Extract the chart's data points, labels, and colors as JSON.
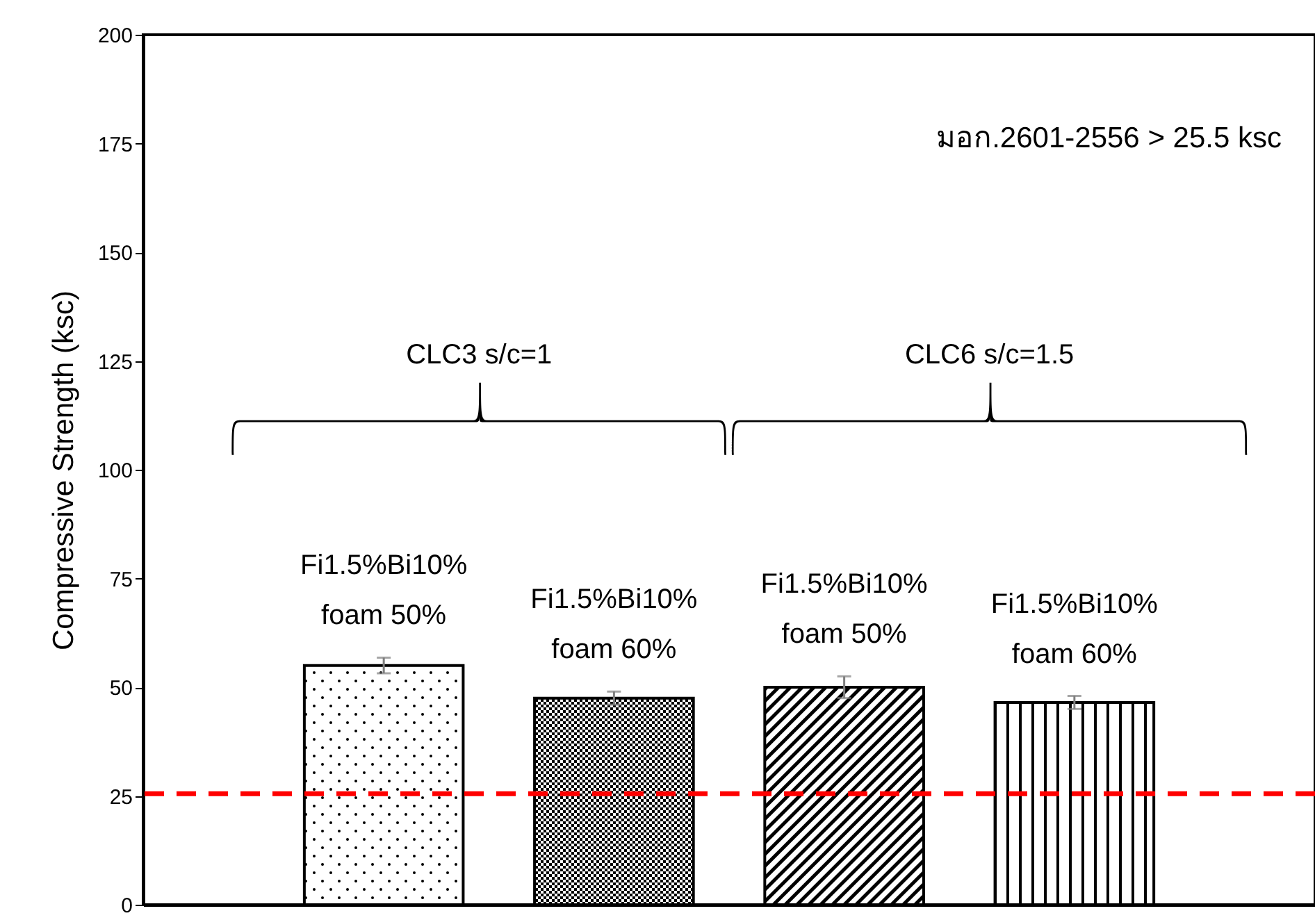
{
  "chart_data": {
    "type": "bar",
    "ylabel": "Compressive Strength (ksc)",
    "categories": [
      "Fi1.5%Bi10% foam 50%",
      "Fi1.5%Bi10% foam 60%",
      "Fi1.5%Bi10% foam 50%",
      "Fi1.5%Bi10% foam 60%"
    ],
    "values": [
      55,
      47.5,
      50,
      46.5
    ],
    "errors": [
      1.8,
      1.5,
      2.5,
      1.5
    ],
    "ylim": [
      0,
      200
    ],
    "yticks": [
      0,
      25,
      50,
      75,
      100,
      125,
      150,
      175,
      200
    ],
    "ref_lines": [
      {
        "axis": "y",
        "value": 25.5,
        "color": "#ff0000",
        "line_style": "dashed"
      }
    ],
    "annotations": [
      "มอก.2601-2556 > 25.5 ksc",
      "CLC3 s/c=1",
      "CLC6 s/c=1.5"
    ],
    "grid": false
  }
}
